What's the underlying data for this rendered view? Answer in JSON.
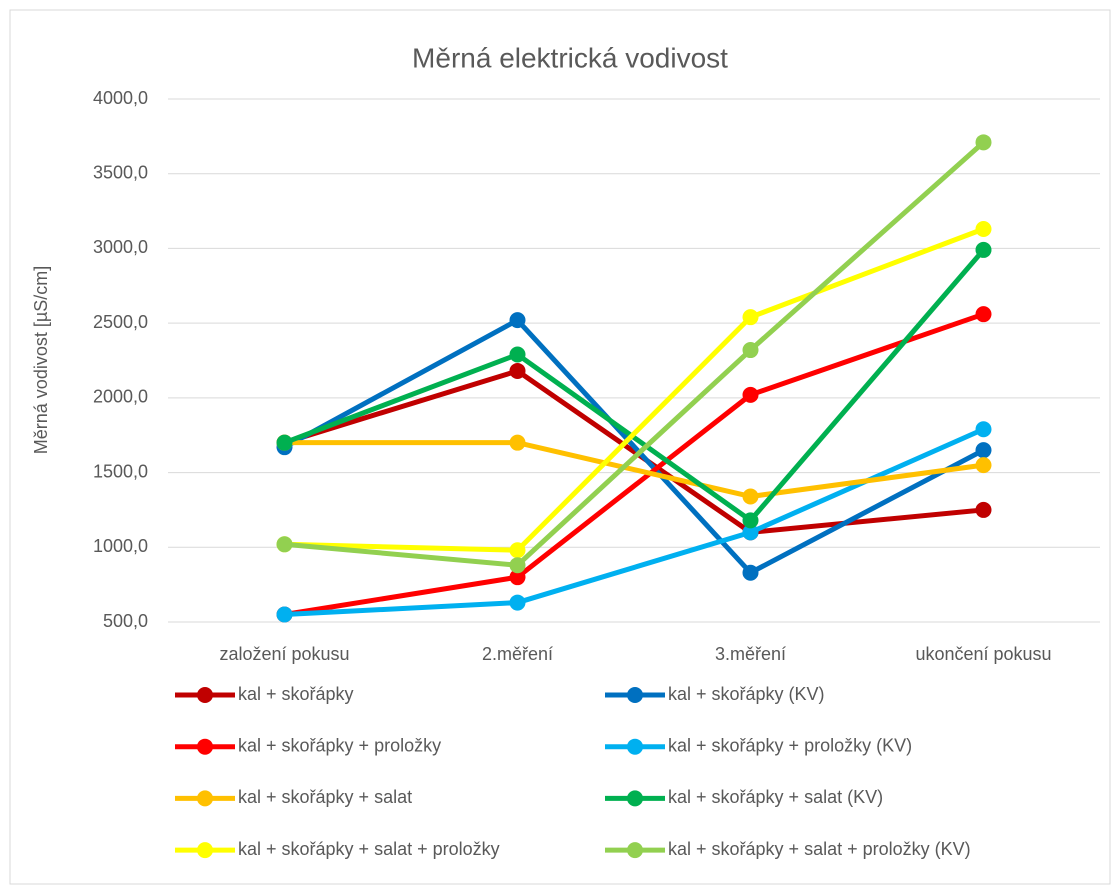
{
  "chart_data": {
    "type": "line",
    "title": "Měrná elektrická vodivost",
    "y_label": "Měrná vodivost [µS/cm]",
    "categories": [
      "založení pokusu",
      "2.měření",
      "3.měření",
      "ukončení pokusu"
    ],
    "series": [
      {
        "name": "kal + skořápky",
        "color": "#c00000",
        "values": [
          1700,
          2180,
          1100,
          1250
        ]
      },
      {
        "name": "kal + skořápky (KV)",
        "color": "#0070c0",
        "values": [
          1670,
          2520,
          830,
          1650
        ]
      },
      {
        "name": "kal + skořápky + proložky",
        "color": "#ff0000",
        "values": [
          550,
          800,
          2020,
          2560
        ]
      },
      {
        "name": "kal + skořápky + proložky (KV)",
        "color": "#00b0f0",
        "values": [
          550,
          630,
          1100,
          1790
        ]
      },
      {
        "name": "kal + skořápky + salat",
        "color": "#ffc000",
        "values": [
          1700,
          1700,
          1340,
          1550
        ]
      },
      {
        "name": "kal + skořápky + salat (KV)",
        "color": "#00b050",
        "values": [
          1700,
          2290,
          1180,
          2990
        ]
      },
      {
        "name": "kal + skořápky + salat + proložky",
        "color": "#ffff00",
        "values": [
          1020,
          980,
          2540,
          3130
        ]
      },
      {
        "name": "kal + skořápky + salat + proložky (KV)",
        "color": "#92d050",
        "values": [
          1020,
          880,
          2320,
          3710
        ]
      }
    ],
    "ylim": [
      500,
      4000
    ],
    "yticks": [
      {
        "value": 500,
        "label": "500,0"
      },
      {
        "value": 1000,
        "label": "1000,0"
      },
      {
        "value": 1500,
        "label": "1500,0"
      },
      {
        "value": 2000,
        "label": "2000,0"
      },
      {
        "value": 2500,
        "label": "2500,0"
      },
      {
        "value": 3000,
        "label": "3000,0"
      },
      {
        "value": 3500,
        "label": "3500,0"
      },
      {
        "value": 4000,
        "label": "4000,0"
      }
    ],
    "grid": true,
    "legend": "bottom"
  }
}
